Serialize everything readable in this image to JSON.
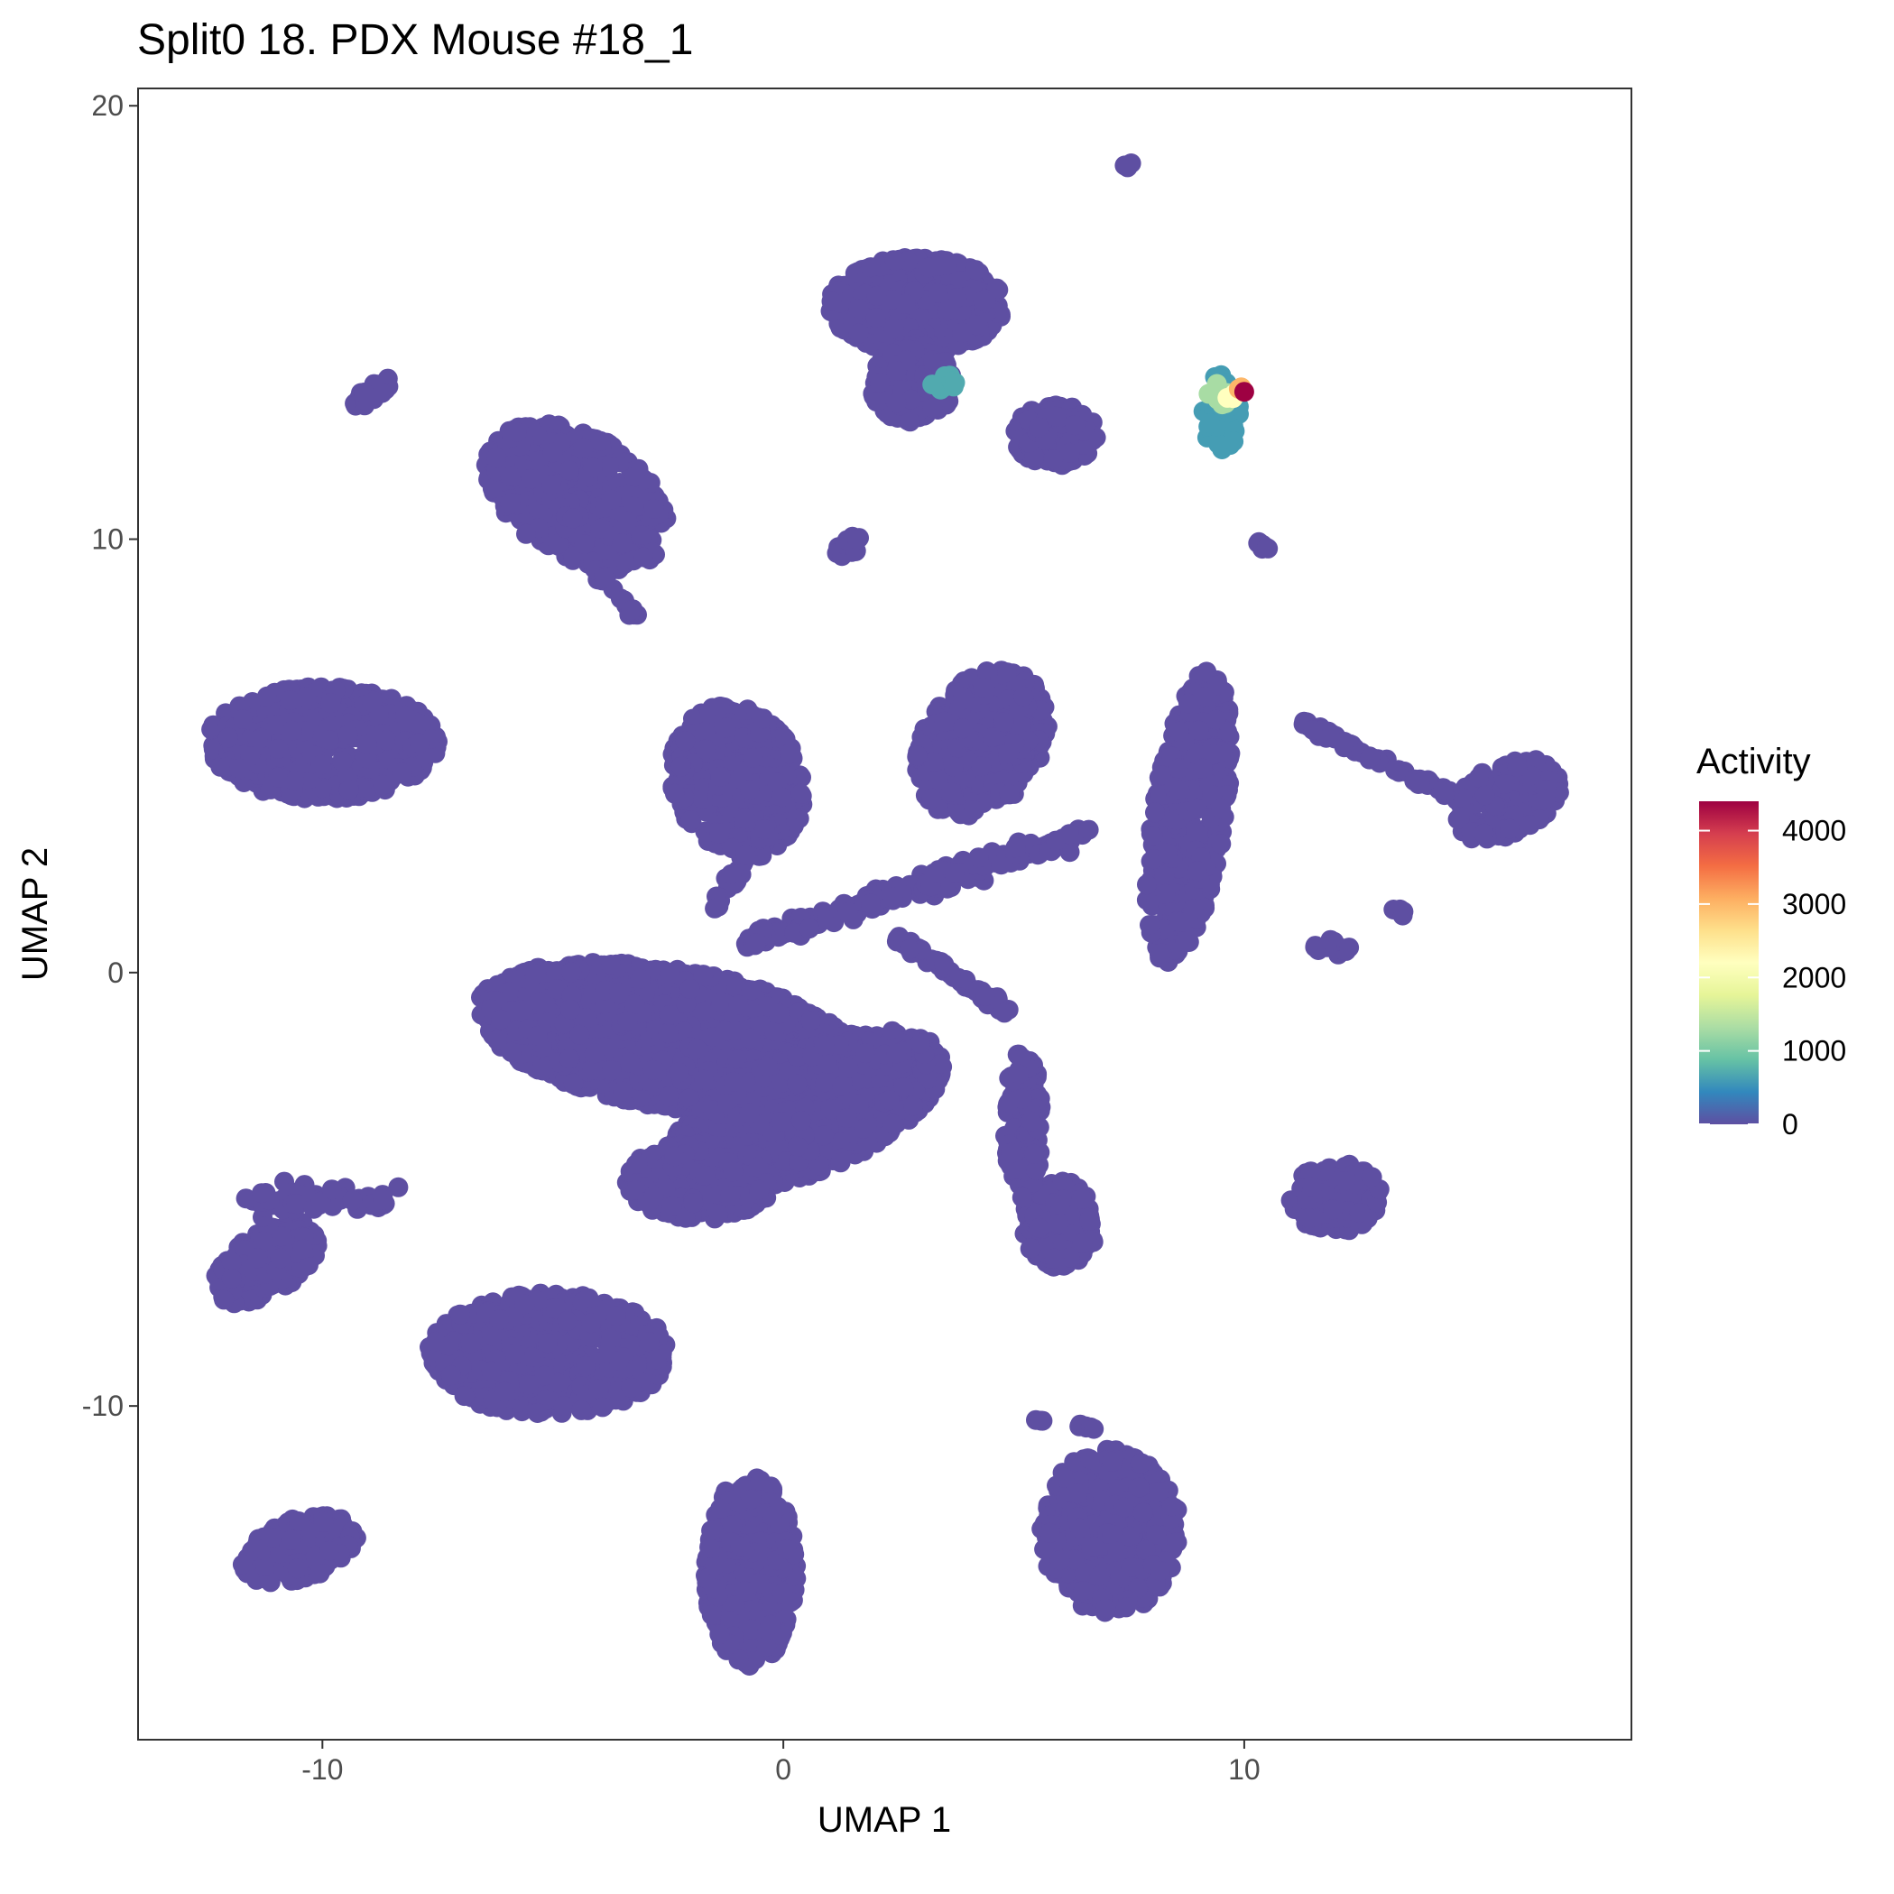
{
  "chart_data": {
    "type": "scatter",
    "title": "Split0 18. PDX Mouse #18_1",
    "xlabel": "UMAP 1",
    "ylabel": "UMAP 2",
    "xlim": [
      -14,
      18.4
    ],
    "ylim": [
      -17.7,
      20.4
    ],
    "x_ticks": [
      -10,
      0,
      10
    ],
    "y_ticks": [
      20,
      10,
      0,
      -10
    ],
    "x_tick_labels": [
      "-10",
      "0",
      "10"
    ],
    "y_tick_labels": [
      "20",
      "10",
      "0",
      "-10"
    ],
    "grid": false,
    "legend": {
      "title": "Activity",
      "position": "right",
      "type": "colorbar",
      "range": [
        0,
        4400
      ],
      "ticks": [
        4000,
        3000,
        2000,
        1000,
        0
      ],
      "tick_labels": [
        "4000",
        "3000",
        "2000",
        "1000",
        "0"
      ],
      "palette": [
        "#5e4fa2",
        "#3288bd",
        "#66c2a5",
        "#abdda4",
        "#e6f598",
        "#ffffbf",
        "#fee08b",
        "#fdae61",
        "#f46d43",
        "#d53e4f",
        "#9e0142"
      ]
    },
    "point_color_default": "#5e4fa2",
    "clusters": [
      {
        "shape": "blob",
        "cx": -10,
        "cy": 5.3,
        "rx": 2.5,
        "ry": 1.3,
        "n": 700,
        "value": 0
      },
      {
        "shape": "blob",
        "cx": -4.5,
        "cy": 11,
        "rx": 2.2,
        "ry": 1.4,
        "n": 550,
        "angle": -35,
        "value": 0
      },
      {
        "shape": "blob",
        "cx": -2.5,
        "cy": -1.5,
        "rx": 4.2,
        "ry": 1.6,
        "n": 1800,
        "angle": -10,
        "value": 0
      },
      {
        "shape": "blob",
        "cx": 0.5,
        "cy": -3.2,
        "rx": 3.2,
        "ry": 1.4,
        "n": 1300,
        "angle": 25,
        "value": 0
      },
      {
        "shape": "blob",
        "cx": -1.8,
        "cy": -4.8,
        "rx": 1.6,
        "ry": 0.9,
        "n": 400,
        "value": 0
      },
      {
        "shape": "blob",
        "cx": -1,
        "cy": 4.4,
        "rx": 1.4,
        "ry": 1.8,
        "n": 500,
        "angle": 20,
        "value": 0
      },
      {
        "shape": "blob",
        "cx": 2.9,
        "cy": 15.4,
        "rx": 1.9,
        "ry": 1.1,
        "n": 500,
        "value": 0
      },
      {
        "shape": "blob",
        "cx": 2.8,
        "cy": 13.6,
        "rx": 0.9,
        "ry": 0.9,
        "n": 220,
        "value": 0
      },
      {
        "shape": "blob",
        "cx": 5.9,
        "cy": 12.4,
        "rx": 0.9,
        "ry": 0.7,
        "n": 200,
        "value": 0
      },
      {
        "shape": "blob",
        "cx": 4.3,
        "cy": 5.3,
        "rx": 1.3,
        "ry": 1.8,
        "n": 450,
        "angle": -30,
        "value": 0
      },
      {
        "shape": "blob",
        "cx": 8.8,
        "cy": 3.6,
        "rx": 0.8,
        "ry": 3.4,
        "n": 500,
        "angle": -8,
        "value": 0
      },
      {
        "shape": "blob",
        "cx": 6,
        "cy": -5.8,
        "rx": 0.8,
        "ry": 1.0,
        "n": 200,
        "value": 0
      },
      {
        "shape": "blob",
        "cx": 5.2,
        "cy": -3.5,
        "rx": 0.4,
        "ry": 1.8,
        "n": 140,
        "value": 0
      },
      {
        "shape": "blob",
        "cx": -11.2,
        "cy": -6.7,
        "rx": 1.3,
        "ry": 0.7,
        "n": 200,
        "angle": 35,
        "value": 0
      },
      {
        "shape": "blob",
        "cx": -5.1,
        "cy": -8.8,
        "rx": 2.6,
        "ry": 1.4,
        "n": 700,
        "value": 0
      },
      {
        "shape": "blob",
        "cx": -10.5,
        "cy": -13.3,
        "rx": 1.3,
        "ry": 0.7,
        "n": 200,
        "angle": 20,
        "value": 0
      },
      {
        "shape": "blob",
        "cx": -0.7,
        "cy": -13.8,
        "rx": 1.0,
        "ry": 2.2,
        "n": 450,
        "value": 0
      },
      {
        "shape": "blob",
        "cx": 7.1,
        "cy": -12.9,
        "rx": 1.5,
        "ry": 1.9,
        "n": 500,
        "value": 0
      },
      {
        "shape": "blob",
        "cx": 12,
        "cy": -5.2,
        "rx": 1.0,
        "ry": 0.8,
        "n": 160,
        "value": 0
      },
      {
        "shape": "blob",
        "cx": 15.7,
        "cy": 4.0,
        "rx": 1.3,
        "ry": 0.8,
        "n": 200,
        "angle": 30,
        "value": 0
      },
      {
        "shape": "blob",
        "cx": -8.9,
        "cy": 13.4,
        "rx": 0.5,
        "ry": 0.2,
        "n": 25,
        "angle": 40,
        "value": 0
      },
      {
        "shape": "blob",
        "cx": 1.4,
        "cy": 9.8,
        "rx": 0.4,
        "ry": 0.2,
        "n": 15,
        "angle": 40,
        "value": 0
      },
      {
        "shape": "blob",
        "cx": 10.4,
        "cy": 9.9,
        "rx": 0.2,
        "ry": 0.2,
        "n": 6,
        "value": 0
      },
      {
        "shape": "blob",
        "cx": 7.5,
        "cy": 18.6,
        "rx": 0.1,
        "ry": 0.1,
        "n": 3,
        "value": 0
      },
      {
        "shape": "blob",
        "cx": 11.9,
        "cy": 0.6,
        "rx": 0.4,
        "ry": 0.2,
        "n": 15,
        "value": 0
      },
      {
        "shape": "blob",
        "cx": 13.3,
        "cy": 1.3,
        "rx": 0.2,
        "ry": 0.2,
        "n": 5,
        "value": 0
      },
      {
        "shape": "path",
        "from": [
          -0.8,
          0.7
        ],
        "to": [
          6.5,
          3.2
        ],
        "n": 180,
        "spread": 0.25,
        "value": 0
      },
      {
        "shape": "path",
        "from": [
          2.5,
          0.8
        ],
        "to": [
          5,
          -1.0
        ],
        "n": 50,
        "spread": 0.12,
        "value": 0
      },
      {
        "shape": "path",
        "from": [
          11.2,
          5.8
        ],
        "to": [
          14.5,
          4.1
        ],
        "n": 60,
        "spread": 0.1,
        "value": 0
      },
      {
        "shape": "path",
        "from": [
          -11.5,
          -5.2
        ],
        "to": [
          -8.5,
          -5.3
        ],
        "n": 70,
        "spread": 0.3,
        "value": 0
      },
      {
        "shape": "path",
        "from": [
          -4.2,
          9.5
        ],
        "to": [
          -3.2,
          8.2
        ],
        "n": 25,
        "spread": 0.1,
        "value": 0
      },
      {
        "shape": "path",
        "from": [
          -1.5,
          1.5
        ],
        "to": [
          -0.3,
          3.5
        ],
        "n": 40,
        "spread": 0.15,
        "value": 0
      },
      {
        "shape": "path",
        "from": [
          6.7,
          -10.5
        ],
        "to": [
          5.5,
          -10.3
        ],
        "n": 10,
        "spread": 0.05,
        "value": 0
      },
      {
        "shape": "blob",
        "cx": 3.5,
        "cy": 13.6,
        "rx": 0.3,
        "ry": 0.2,
        "n": 10,
        "value": 700
      },
      {
        "shape": "blob",
        "cx": 9.5,
        "cy": 12.9,
        "rx": 0.4,
        "ry": 0.9,
        "n": 50,
        "value": 600
      },
      {
        "shape": "blob",
        "cx": 9.5,
        "cy": 13.3,
        "rx": 0.3,
        "ry": 0.3,
        "n": 12,
        "value": 1300
      },
      {
        "shape": "blob",
        "cx": 9.7,
        "cy": 13.3,
        "rx": 0.1,
        "ry": 0.1,
        "n": 4,
        "value": 2200
      },
      {
        "shape": "blob",
        "cx": 9.9,
        "cy": 13.5,
        "rx": 0.05,
        "ry": 0.05,
        "n": 2,
        "value": 3000
      },
      {
        "shape": "blob",
        "cx": 10,
        "cy": 13.4,
        "rx": 0.0,
        "ry": 0.0,
        "n": 1,
        "value": 4400
      }
    ]
  }
}
